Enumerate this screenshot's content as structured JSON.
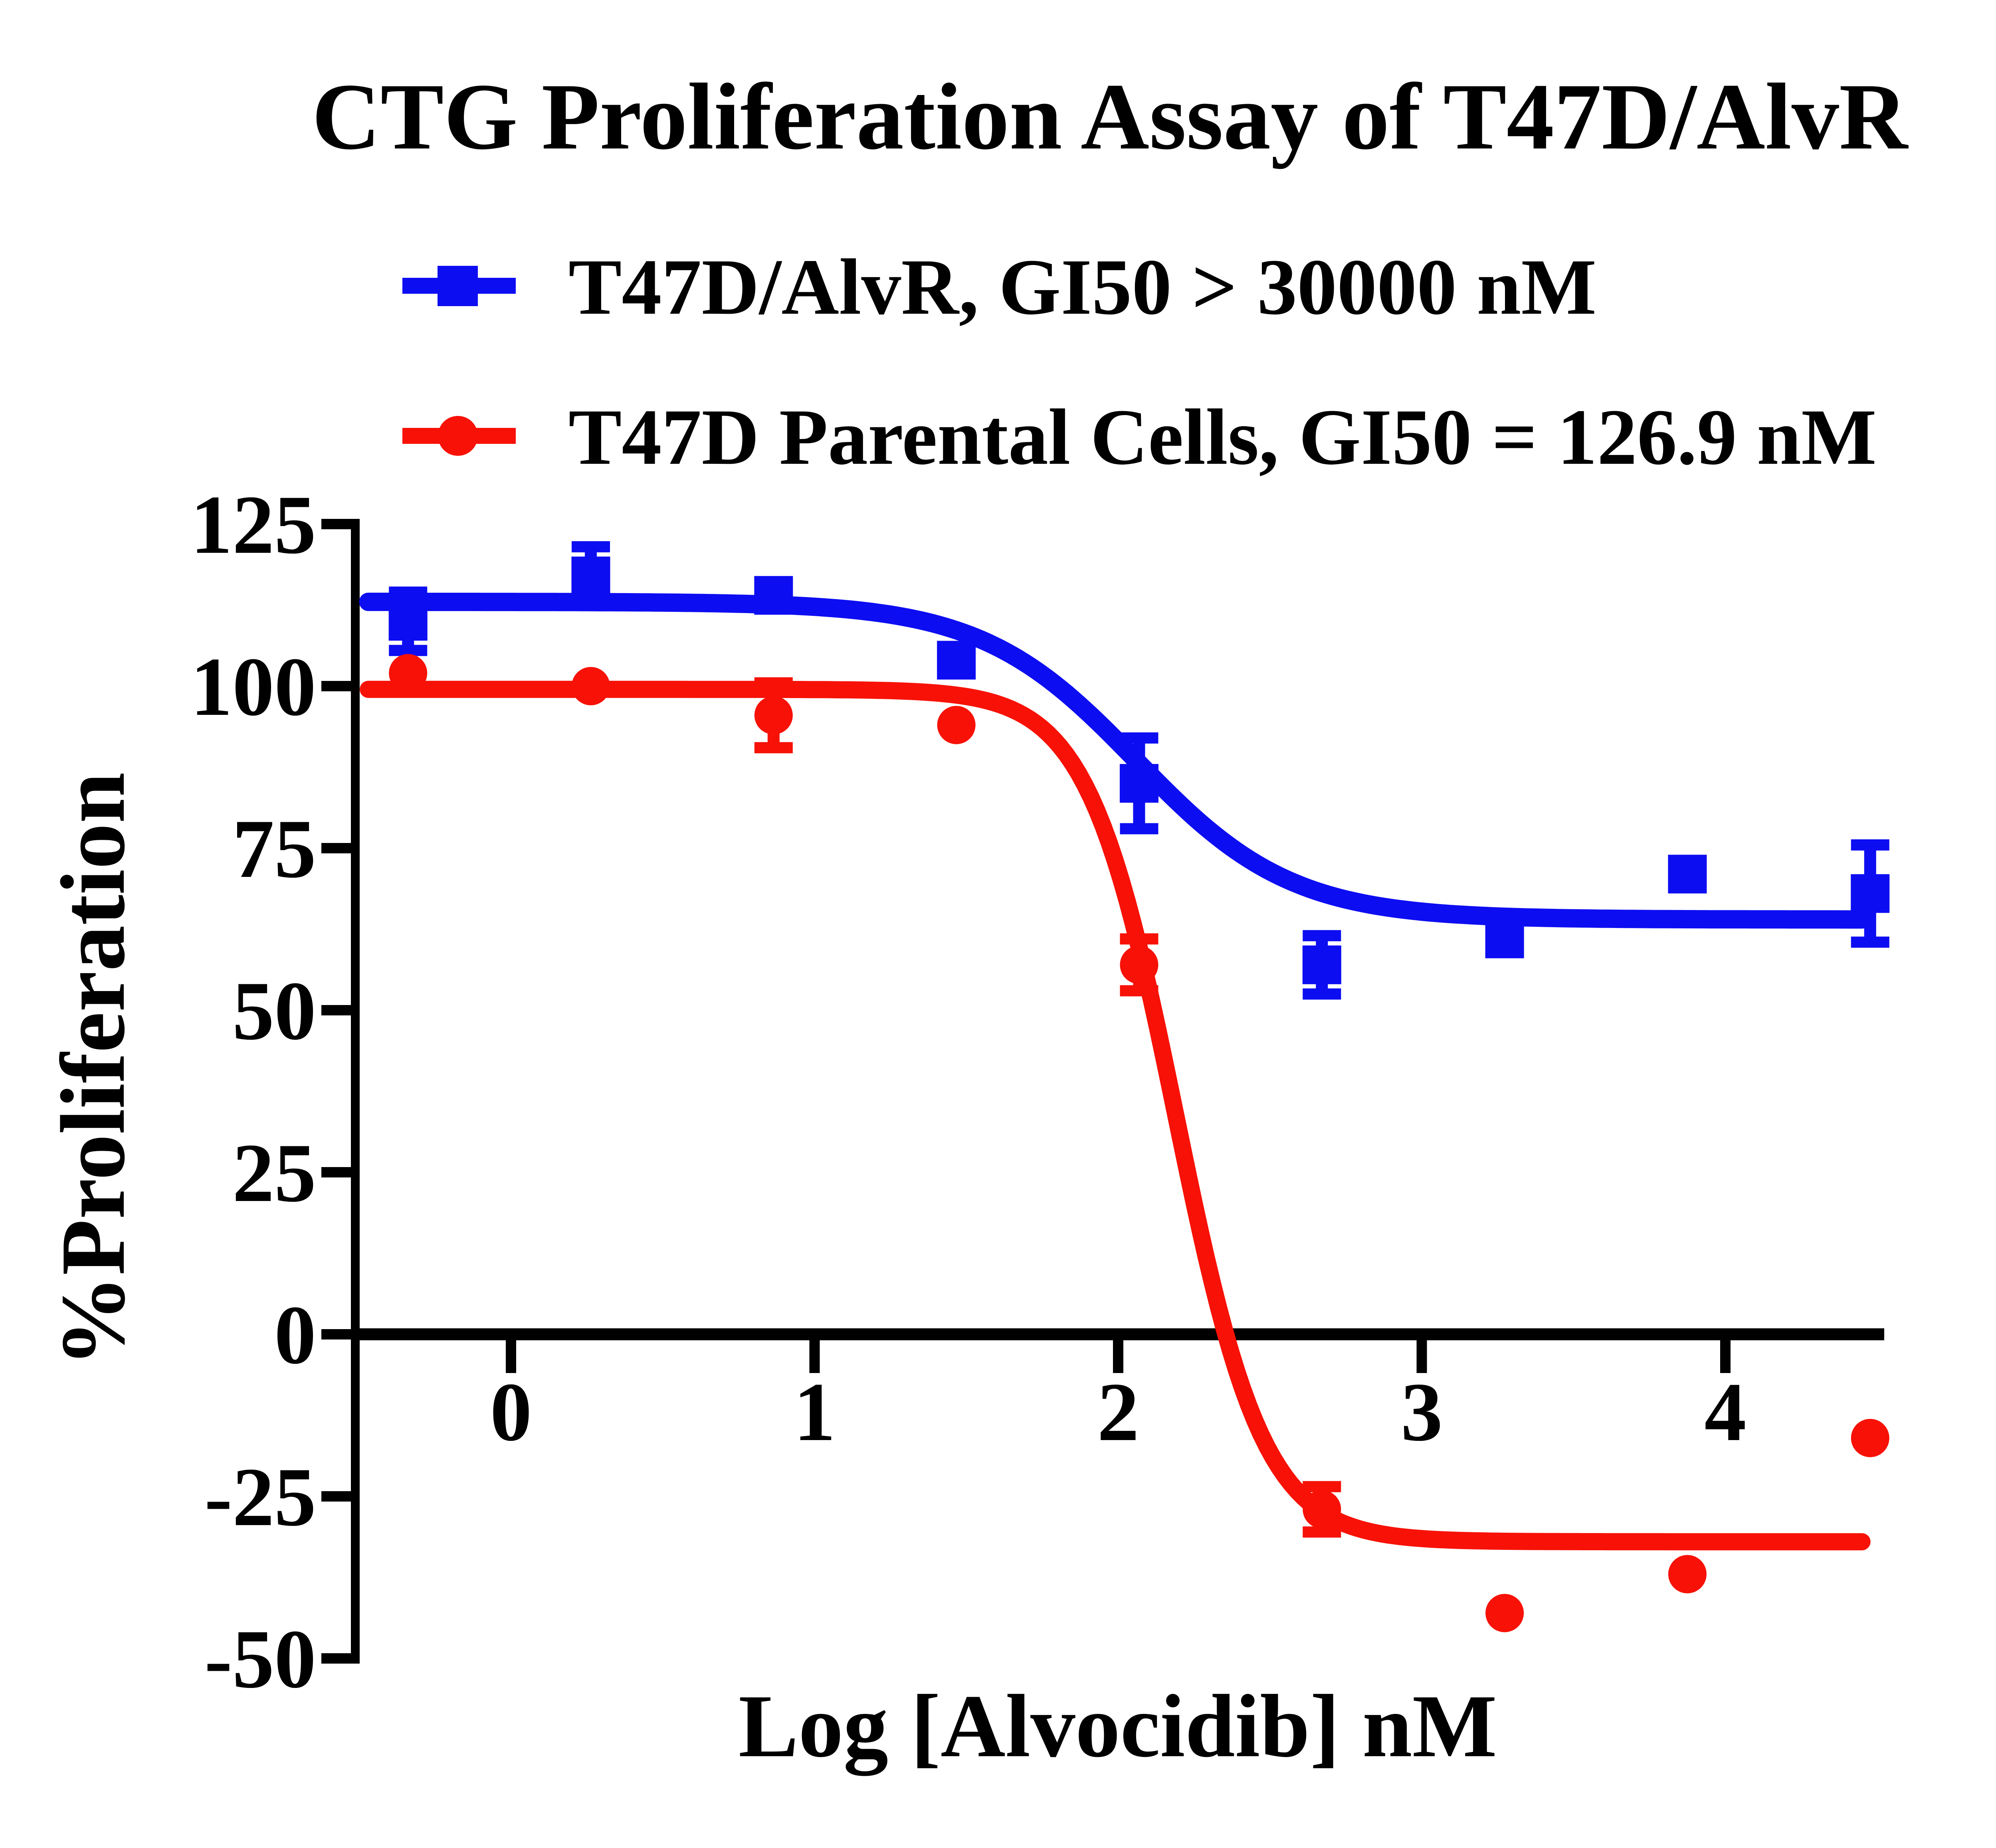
{
  "title": "CTG Proliferation Assay of T47D/AlvR",
  "legend": [
    {
      "label": "T47D/AlvR, GI50 > 30000 nM",
      "marker": "square",
      "color": "#0d0df2"
    },
    {
      "label": "T47D Parental Cells, GI50 = 126.9 nM",
      "marker": "circle",
      "color": "#f71106"
    }
  ],
  "chart_data": {
    "type": "scatter",
    "title": "CTG Proliferation Assay of T47D/AlvR",
    "xlabel": "Log [Alvocidib] nM",
    "ylabel": "%Proliferation",
    "x_ticks": [
      0,
      1,
      2,
      3,
      4
    ],
    "y_ticks": [
      125,
      100,
      75,
      50,
      25,
      0,
      -25,
      -50
    ],
    "xlim": [
      -0.49,
      4.53
    ],
    "ylim": [
      -50,
      125
    ],
    "grid": false,
    "legend_position": "top-left",
    "x": [
      -0.339,
      0.263,
      0.865,
      1.467,
      2.069,
      2.671,
      3.273,
      3.875,
      4.477
    ],
    "series": [
      {
        "name": "T47D/AlvR, GI50 > 30000 nM",
        "marker": "square",
        "color": "#0d0df2",
        "gi50": "> 30000 nM",
        "y": [
          110,
          117,
          114,
          104,
          85,
          57,
          61,
          71,
          68
        ],
        "err": [
          4.5,
          4.5,
          0,
          0,
          7,
          4.5,
          0,
          0,
          7.5
        ],
        "fit": {
          "top": 113,
          "bottom": 64,
          "logec50": 2.06,
          "hill": 1.7
        }
      },
      {
        "name": "T47D Parental Cells, GI50 = 126.9 nM",
        "marker": "circle",
        "color": "#f71106",
        "gi50": "= 126.9 nM",
        "y": [
          102,
          100,
          95.5,
          94,
          57,
          -27,
          -43,
          -37,
          -16
        ],
        "err": [
          0,
          0,
          5,
          0,
          4,
          3.5,
          0,
          0,
          0
        ],
        "fit": {
          "top": 99.5,
          "bottom": -32,
          "logec50": 2.19,
          "hill": 3.0
        }
      }
    ],
    "curve_x_range": [
      -0.47,
      4.455
    ]
  }
}
